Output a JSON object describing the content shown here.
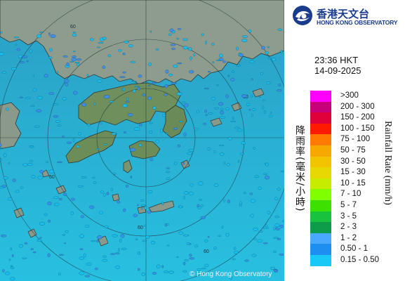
{
  "map": {
    "copyright": "© Hong Kong Observatory",
    "range_labels": [
      "60",
      "60",
      "60",
      "60",
      "60"
    ],
    "colors": {
      "sea": "#28b8d8",
      "land": "#8e9e8c",
      "echo_light": "#15c0f2",
      "echo_med": "#3a8ef0"
    }
  },
  "header": {
    "logo_icon": "hko-logo-icon",
    "org_name_zh": "香港天文台",
    "org_name_en": "HONG KONG OBSERVATORY"
  },
  "timestamp": {
    "time": "23:36 HKT",
    "date": "14-09-2025"
  },
  "legend": {
    "title_zh": "降雨率(毫米/小時)",
    "title_en": "Rainfall Rate (mm/h)",
    "items": [
      {
        "label": ">300",
        "color": "#ff00ff"
      },
      {
        "label": "200 - 300",
        "color": "#c8007a"
      },
      {
        "label": "150 - 200",
        "color": "#e0003a"
      },
      {
        "label": "100 - 150",
        "color": "#ff1a00"
      },
      {
        "label": "75 - 100",
        "color": "#ff7a00"
      },
      {
        "label": "50 - 75",
        "color": "#f5a800"
      },
      {
        "label": "30 - 50",
        "color": "#f2c400"
      },
      {
        "label": "15 - 30",
        "color": "#e6d800"
      },
      {
        "label": "10 - 15",
        "color": "#c8ec00"
      },
      {
        "label": "7 - 10",
        "color": "#80ff00"
      },
      {
        "label": "5 - 7",
        "color": "#3ee000"
      },
      {
        "label": "3 - 5",
        "color": "#18c23c"
      },
      {
        "label": "2 - 3",
        "color": "#0f9c4a"
      },
      {
        "label": "1 - 2",
        "color": "#4aa8ff"
      },
      {
        "label": "0.50 - 1",
        "color": "#1e8ef0"
      },
      {
        "label": "0.15 - 0.50",
        "color": "#18c8f5"
      }
    ]
  }
}
